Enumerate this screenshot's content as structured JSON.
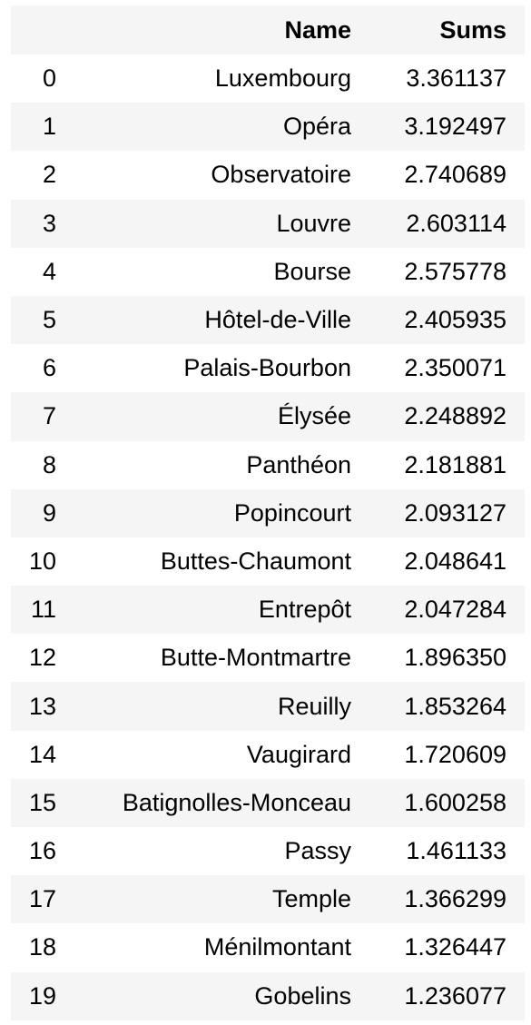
{
  "table": {
    "columns": [
      "",
      "Name",
      "Sums"
    ],
    "rows": [
      {
        "index": "0",
        "name": "Luxembourg",
        "sums": "3.361137"
      },
      {
        "index": "1",
        "name": "Opéra",
        "sums": "3.192497"
      },
      {
        "index": "2",
        "name": "Observatoire",
        "sums": "2.740689"
      },
      {
        "index": "3",
        "name": "Louvre",
        "sums": "2.603114"
      },
      {
        "index": "4",
        "name": "Bourse",
        "sums": "2.575778"
      },
      {
        "index": "5",
        "name": "Hôtel-de-Ville",
        "sums": "2.405935"
      },
      {
        "index": "6",
        "name": "Palais-Bourbon",
        "sums": "2.350071"
      },
      {
        "index": "7",
        "name": "Élysée",
        "sums": "2.248892"
      },
      {
        "index": "8",
        "name": "Panthéon",
        "sums": "2.181881"
      },
      {
        "index": "9",
        "name": "Popincourt",
        "sums": "2.093127"
      },
      {
        "index": "10",
        "name": "Buttes-Chaumont",
        "sums": "2.048641"
      },
      {
        "index": "11",
        "name": "Entrepôt",
        "sums": "2.047284"
      },
      {
        "index": "12",
        "name": "Butte-Montmartre",
        "sums": "1.896350"
      },
      {
        "index": "13",
        "name": "Reuilly",
        "sums": "1.853264"
      },
      {
        "index": "14",
        "name": "Vaugirard",
        "sums": "1.720609"
      },
      {
        "index": "15",
        "name": "Batignolles-Monceau",
        "sums": "1.600258"
      },
      {
        "index": "16",
        "name": "Passy",
        "sums": "1.461133"
      },
      {
        "index": "17",
        "name": "Temple",
        "sums": "1.366299"
      },
      {
        "index": "18",
        "name": "Ménilmontant",
        "sums": "1.326447"
      },
      {
        "index": "19",
        "name": "Gobelins",
        "sums": "1.236077"
      }
    ]
  },
  "colors": {
    "striped_row": "#f5f5f5",
    "background": "#ffffff",
    "text": "#000000"
  }
}
